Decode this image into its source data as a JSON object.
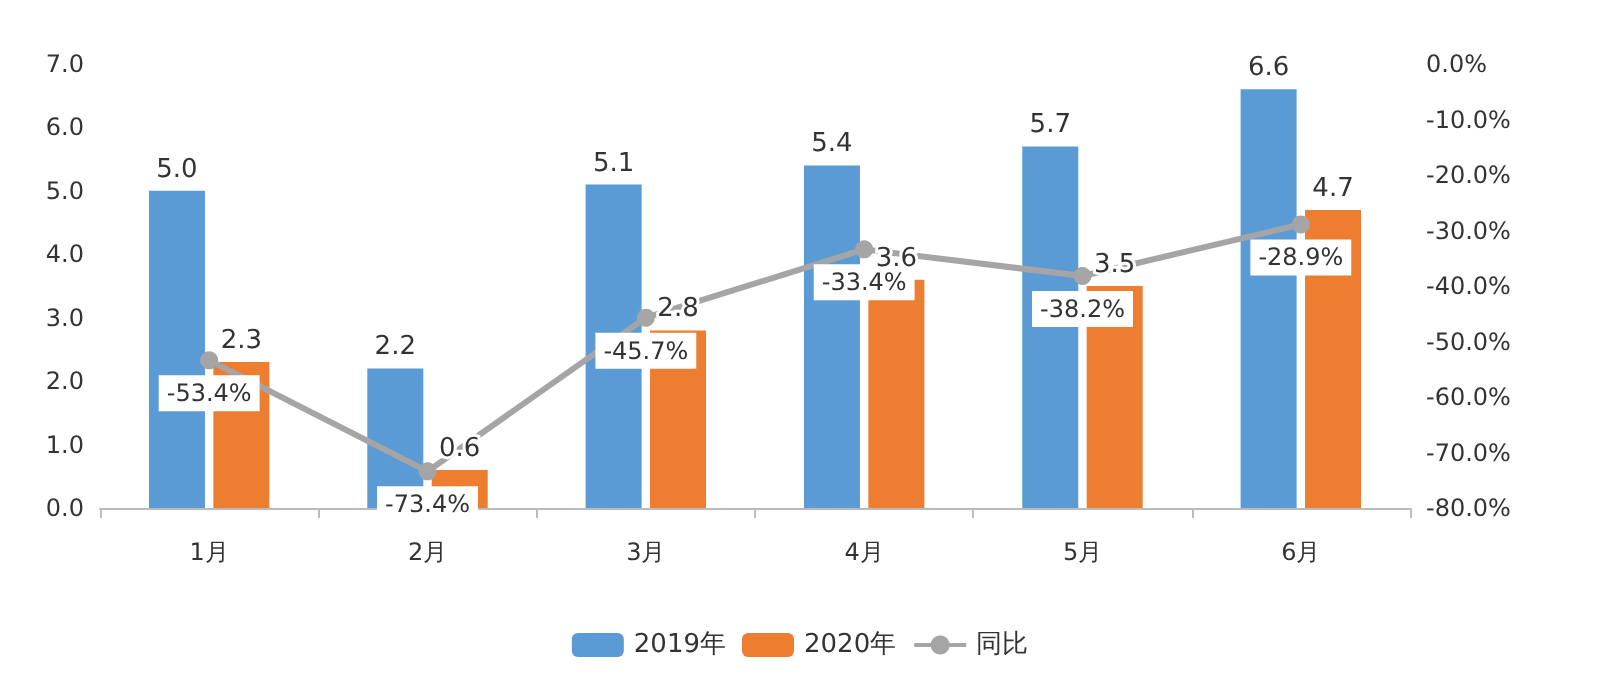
{
  "chart_data": {
    "type": "bar",
    "categories": [
      "1月",
      "2月",
      "3月",
      "4月",
      "5月",
      "6月"
    ],
    "series": [
      {
        "name": "2019年",
        "type": "bar",
        "color": "#5b9bd5",
        "values": [
          5.0,
          2.2,
          5.1,
          5.4,
          5.7,
          6.6
        ],
        "value_labels": [
          "5.0",
          "2.2",
          "5.1",
          "5.4",
          "5.7",
          "6.6"
        ]
      },
      {
        "name": "2020年",
        "type": "bar",
        "color": "#ed7d31",
        "values": [
          2.3,
          0.6,
          2.8,
          3.6,
          3.5,
          4.7
        ],
        "value_labels": [
          "2.3",
          "0.6",
          "2.8",
          "3.6",
          "3.5",
          "4.7"
        ]
      },
      {
        "name": "同比",
        "type": "line",
        "axis": "y2",
        "color": "#a5a5a5",
        "marker": "circle",
        "values": [
          -53.4,
          -73.4,
          -45.7,
          -33.4,
          -38.2,
          -28.9
        ],
        "value_labels": [
          "-53.4%",
          "-73.4%",
          "-45.7%",
          "-33.4%",
          "-38.2%",
          "-28.9%"
        ]
      }
    ],
    "ylim": [
      0,
      7
    ],
    "yticks": [
      {
        "value": 0,
        "label": "0.0"
      },
      {
        "value": 1,
        "label": "1.0"
      },
      {
        "value": 2,
        "label": "2.0"
      },
      {
        "value": 3,
        "label": "3.0"
      },
      {
        "value": 4,
        "label": "4.0"
      },
      {
        "value": 5,
        "label": "5.0"
      },
      {
        "value": 6,
        "label": "6.0"
      },
      {
        "value": 7,
        "label": "7.0"
      }
    ],
    "y2lim": [
      -80,
      0
    ],
    "y2ticks": [
      {
        "value": 0,
        "label": "0.0%"
      },
      {
        "value": -10,
        "label": "-10.0%"
      },
      {
        "value": -20,
        "label": "-20.0%"
      },
      {
        "value": -30,
        "label": "-30.0%"
      },
      {
        "value": -40,
        "label": "-40.0%"
      },
      {
        "value": -50,
        "label": "-50.0%"
      },
      {
        "value": -60,
        "label": "-60.0%"
      },
      {
        "value": -70,
        "label": "-70.0%"
      },
      {
        "value": -80,
        "label": "-80.0%"
      }
    ],
    "grid": false,
    "legend": "bottom"
  }
}
